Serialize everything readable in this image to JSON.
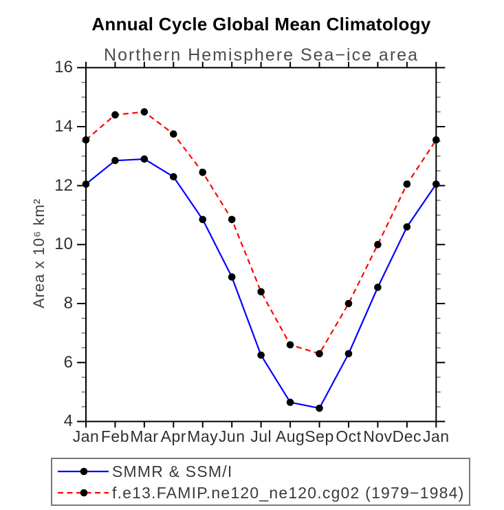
{
  "title": "Annual Cycle Global Mean Climatology",
  "subtitle": "Northern Hemisphere Sea−ice area",
  "y_axis_label": "Area x 10⁶ km²",
  "legend": {
    "entries": [
      {
        "label": "SMMR & SSM/I",
        "color": "#0000ff",
        "style": "solid",
        "marker": "filled-circle",
        "marker_color": "#000000"
      },
      {
        "label": "f.e13.FAMIP.ne120_ne120.cg02 (1979−1984)",
        "color": "#ff0000",
        "style": "dashed",
        "marker": "filled-circle",
        "marker_color": "#000000"
      }
    ]
  },
  "colors": {
    "obs_line": "#0000ff",
    "model_line": "#ff0000",
    "marker": "#000000",
    "axis": "#000000",
    "minor_tick": "#555555",
    "tick_label": "#2f2f2f",
    "subtitle_text": "#4b4b4b",
    "legend_border": "#787878"
  },
  "chart_data": {
    "type": "line",
    "title": "Annual Cycle Global Mean Climatology",
    "subtitle": "Northern Hemisphere Sea−ice area",
    "xlabel": "",
    "ylabel": "Area x 10⁶ km²",
    "categories": [
      "Jan",
      "Feb",
      "Mar",
      "Apr",
      "May",
      "Jun",
      "Jul",
      "Aug",
      "Sep",
      "Oct",
      "Nov",
      "Dec",
      "Jan"
    ],
    "series": [
      {
        "name": "SMMR & SSM/I",
        "color": "#0000ff",
        "style": "solid",
        "marker": "filled-circle",
        "marker_color": "#000000",
        "values": [
          12.05,
          12.85,
          12.9,
          12.3,
          10.85,
          8.9,
          6.25,
          4.65,
          4.45,
          6.3,
          8.55,
          10.6,
          12.05
        ]
      },
      {
        "name": "f.e13.FAMIP.ne120_ne120.cg02 (1979−1984)",
        "color": "#ff0000",
        "style": "dashed",
        "marker": "filled-circle",
        "marker_color": "#000000",
        "values": [
          13.55,
          14.4,
          14.5,
          13.75,
          12.45,
          10.85,
          8.4,
          6.6,
          6.3,
          8.0,
          10.0,
          12.05,
          13.55
        ]
      }
    ],
    "ylim": [
      4,
      16
    ],
    "y_major_ticks": [
      4,
      6,
      8,
      10,
      12,
      14,
      16
    ],
    "y_tick_labels": [
      "4",
      "6",
      "8",
      "10",
      "12",
      "14",
      "16"
    ],
    "y_minor_step": 0.5,
    "x_tick_labels": [
      "Jan",
      "Feb",
      "Mar",
      "Apr",
      "May",
      "Jun",
      "Jul",
      "Aug",
      "Sep",
      "Oct",
      "Nov",
      "Dec",
      "Jan"
    ],
    "grid": false,
    "ticks": "outward-all-four-sides",
    "legend_position": "bottom-left-boxed"
  }
}
